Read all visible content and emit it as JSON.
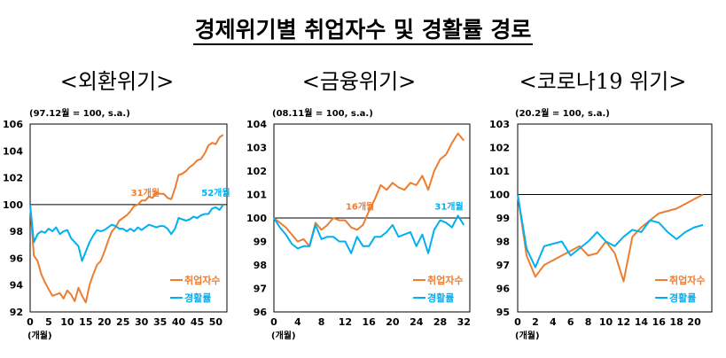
{
  "title": "경제위기별 취업자수 및 경활률 경로",
  "legend": {
    "employment": "취업자수",
    "participation": "경활률"
  },
  "colors": {
    "employment": "#ED7D31",
    "participation": "#00B0F0",
    "baseline": "#000000"
  },
  "chart_data": [
    {
      "type": "line",
      "title": "<외환위기>",
      "note": "(97.12월 = 100, s.a.)",
      "xlabel": "(개월)",
      "xlim": [
        0,
        53
      ],
      "ylim": [
        92,
        106
      ],
      "xticks": [
        0,
        5,
        10,
        15,
        20,
        25,
        30,
        35,
        40,
        45,
        50
      ],
      "yticks": [
        92,
        94,
        96,
        98,
        100,
        102,
        104,
        106
      ],
      "baseline": 100,
      "annotations": [
        {
          "text": "31개월",
          "x": 31,
          "y": 100.4,
          "color": "employment"
        },
        {
          "text": "52개월",
          "x": 50,
          "y": 100.4,
          "color": "participation"
        }
      ],
      "series": [
        {
          "name": "취업자수",
          "key": "employment",
          "x": [
            0,
            1,
            2,
            3,
            4,
            5,
            6,
            7,
            8,
            9,
            10,
            11,
            12,
            13,
            14,
            15,
            16,
            17,
            18,
            19,
            20,
            21,
            22,
            23,
            24,
            25,
            26,
            27,
            28,
            29,
            30,
            31,
            32,
            33,
            34,
            35,
            36,
            37,
            38,
            39,
            40,
            41,
            42,
            43,
            44,
            45,
            46,
            47,
            48,
            49,
            50,
            51,
            52
          ],
          "values": [
            100,
            96.2,
            95.8,
            94.8,
            94.2,
            93.7,
            93.2,
            93.3,
            93.4,
            93.0,
            93.6,
            93.3,
            92.8,
            93.8,
            93.2,
            92.7,
            94.0,
            94.8,
            95.5,
            95.8,
            96.5,
            97.3,
            98.0,
            98.3,
            98.8,
            99.0,
            99.2,
            99.5,
            99.9,
            100.0,
            100.3,
            100.3,
            100.6,
            100.5,
            100.9,
            100.8,
            100.8,
            100.5,
            100.4,
            101.2,
            102.2,
            102.3,
            102.5,
            102.8,
            103.0,
            103.3,
            103.4,
            103.8,
            104.4,
            104.6,
            104.5,
            105.0,
            105.2
          ]
        },
        {
          "name": "경활률",
          "key": "participation",
          "x": [
            0,
            1,
            2,
            3,
            4,
            5,
            6,
            7,
            8,
            9,
            10,
            11,
            12,
            13,
            14,
            15,
            16,
            17,
            18,
            19,
            20,
            21,
            22,
            23,
            24,
            25,
            26,
            27,
            28,
            29,
            30,
            31,
            32,
            33,
            34,
            35,
            36,
            37,
            38,
            39,
            40,
            41,
            42,
            43,
            44,
            45,
            46,
            47,
            48,
            49,
            50,
            51,
            52
          ],
          "values": [
            100,
            97.2,
            97.8,
            98.0,
            97.9,
            98.2,
            98.0,
            98.3,
            97.8,
            98.0,
            98.1,
            97.5,
            97.2,
            96.9,
            95.8,
            96.5,
            97.2,
            97.7,
            98.1,
            98.0,
            98.1,
            98.3,
            98.5,
            98.4,
            98.2,
            98.2,
            98.0,
            98.2,
            98.0,
            98.3,
            98.1,
            98.3,
            98.5,
            98.4,
            98.3,
            98.4,
            98.4,
            98.2,
            97.8,
            98.2,
            99.0,
            98.9,
            98.8,
            98.9,
            99.1,
            99.0,
            99.2,
            99.3,
            99.3,
            99.7,
            99.8,
            99.6,
            100.0
          ]
        }
      ]
    },
    {
      "type": "line",
      "title": "<금융위기>",
      "note": "(08.11월 = 100, s.a.)",
      "xlabel": "(개월)",
      "xlim": [
        0,
        33
      ],
      "ylim": [
        96,
        104
      ],
      "xticks": [
        0,
        4,
        8,
        12,
        16,
        20,
        24,
        28,
        32
      ],
      "yticks": [
        96,
        97,
        98,
        99,
        100,
        101,
        102,
        103,
        104
      ],
      "baseline": 100,
      "annotations": [
        {
          "text": "16개월",
          "x": 14.5,
          "y": 100.2,
          "color": "employment"
        },
        {
          "text": "31개월",
          "x": 29.5,
          "y": 100.2,
          "color": "participation"
        }
      ],
      "series": [
        {
          "name": "취업자수",
          "key": "employment",
          "x": [
            0,
            1,
            2,
            3,
            4,
            5,
            6,
            7,
            8,
            9,
            10,
            11,
            12,
            13,
            14,
            15,
            16,
            17,
            18,
            19,
            20,
            21,
            22,
            23,
            24,
            25,
            26,
            27,
            28,
            29,
            30,
            31,
            32
          ],
          "values": [
            100,
            99.8,
            99.6,
            99.3,
            99.0,
            99.1,
            98.8,
            99.8,
            99.5,
            99.7,
            100.0,
            99.9,
            99.9,
            99.6,
            99.5,
            99.7,
            100.3,
            100.8,
            101.4,
            101.2,
            101.5,
            101.3,
            101.2,
            101.5,
            101.4,
            101.8,
            101.2,
            102.0,
            102.5,
            102.7,
            103.2,
            103.6,
            103.3
          ]
        },
        {
          "name": "경활률",
          "key": "participation",
          "x": [
            0,
            1,
            2,
            3,
            4,
            5,
            6,
            7,
            8,
            9,
            10,
            11,
            12,
            13,
            14,
            15,
            16,
            17,
            18,
            19,
            20,
            21,
            22,
            23,
            24,
            25,
            26,
            27,
            28,
            29,
            30,
            31,
            32
          ],
          "values": [
            100,
            99.6,
            99.3,
            98.9,
            98.7,
            98.8,
            98.8,
            99.7,
            99.1,
            99.2,
            99.2,
            99.0,
            99.0,
            98.5,
            99.2,
            98.8,
            98.8,
            99.2,
            99.2,
            99.4,
            99.7,
            99.2,
            99.3,
            99.4,
            98.8,
            99.3,
            98.5,
            99.5,
            99.9,
            99.8,
            99.6,
            100.1,
            99.7
          ]
        }
      ]
    },
    {
      "type": "line",
      "title": "<코로나19 위기>",
      "note": "(20.2월 = 100, s.a.)",
      "xlabel": "(개월)",
      "xlim": [
        0,
        22
      ],
      "ylim": [
        95,
        103
      ],
      "xticks": [
        0,
        2,
        4,
        6,
        8,
        10,
        12,
        14,
        16,
        18,
        20
      ],
      "yticks": [
        95,
        96,
        97,
        98,
        99,
        100,
        101,
        102,
        103
      ],
      "baseline": 100,
      "annotations": [],
      "series": [
        {
          "name": "취업자수",
          "key": "employment",
          "x": [
            0,
            1,
            2,
            3,
            4,
            5,
            6,
            7,
            8,
            9,
            10,
            11,
            12,
            13,
            14,
            15,
            16,
            17,
            18,
            19,
            20,
            21
          ],
          "values": [
            100,
            97.4,
            96.5,
            97.0,
            97.2,
            97.4,
            97.6,
            97.8,
            97.4,
            97.5,
            98.0,
            97.5,
            96.3,
            98.2,
            98.6,
            98.9,
            99.2,
            99.3,
            99.4,
            99.6,
            99.8,
            100.0
          ]
        },
        {
          "name": "경활률",
          "key": "participation",
          "x": [
            0,
            1,
            2,
            3,
            4,
            5,
            6,
            7,
            8,
            9,
            10,
            11,
            12,
            13,
            14,
            15,
            16,
            17,
            18,
            19,
            20,
            21
          ],
          "values": [
            100,
            97.7,
            96.9,
            97.8,
            97.9,
            98.0,
            97.4,
            97.7,
            98.0,
            98.4,
            98.0,
            97.8,
            98.2,
            98.5,
            98.4,
            98.9,
            98.8,
            98.4,
            98.1,
            98.4,
            98.6,
            98.7
          ]
        }
      ]
    }
  ]
}
